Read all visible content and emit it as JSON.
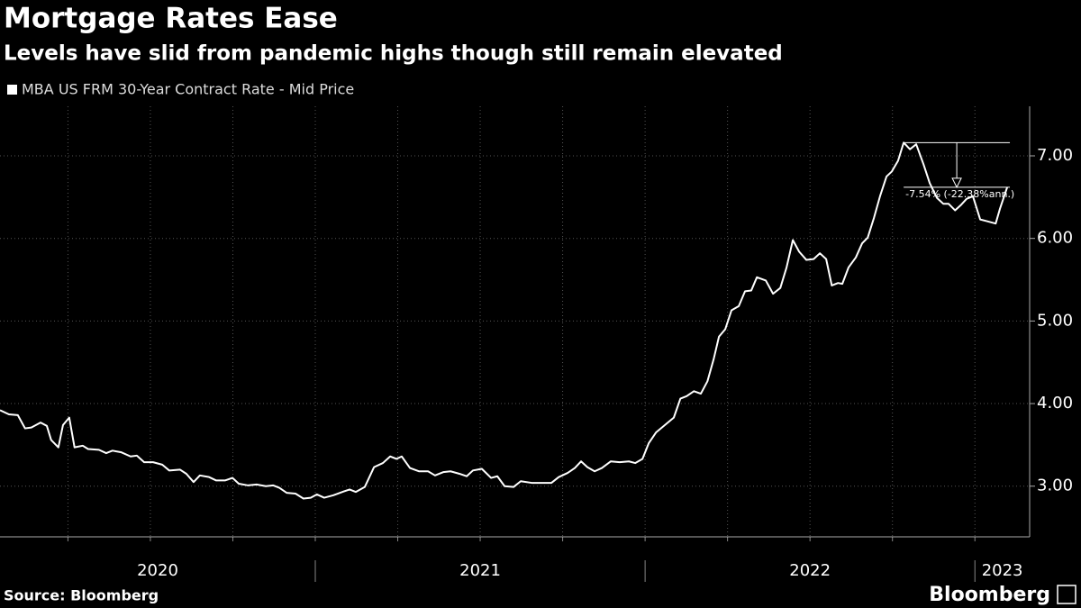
{
  "chart_data": {
    "type": "line",
    "title": "Mortgage Rates Ease",
    "subtitle": "Levels have slid from pandemic highs though still remain elevated",
    "source": "Source: Bloomberg",
    "logo": "Bloomberg",
    "xlim": [
      2020.044,
      2023.166
    ],
    "xticks": [
      {
        "value": 2020,
        "label": "2020"
      },
      {
        "value": 2021,
        "label": "2021"
      },
      {
        "value": 2022,
        "label": "2022"
      },
      {
        "value": 2023,
        "label": "2023"
      }
    ],
    "xgrid": [
      2020.25,
      2020.5,
      2020.75,
      2021,
      2021.25,
      2021.5,
      2021.75,
      2022,
      2022.25,
      2022.5,
      2022.75,
      2023
    ],
    "ylim": [
      2.43,
      7.6
    ],
    "yticks": [
      {
        "value": 3,
        "label": "3.00"
      },
      {
        "value": 4,
        "label": "4.00"
      },
      {
        "value": 5,
        "label": "5.00"
      },
      {
        "value": 6,
        "label": "6.00"
      },
      {
        "value": 7,
        "label": "7.00"
      }
    ],
    "grid": true,
    "legend": "top-left",
    "annotation": {
      "text": "-7.54% (-22.38%ann.)",
      "x": [
        2022.784,
        2023.106
      ],
      "from": 7.16,
      "to": 6.62
    },
    "series": [
      {
        "name": "MBA US FRM 30-Year Contract Rate - Mid Price",
        "color": "#ffffff",
        "x": [
          2020.044,
          2020.071,
          2020.098,
          2020.12,
          2020.139,
          2020.167,
          2020.186,
          2020.199,
          2020.221,
          2020.235,
          2020.254,
          2020.27,
          2020.295,
          2020.311,
          2020.344,
          2020.366,
          2020.385,
          2020.412,
          2020.44,
          2020.459,
          2020.481,
          2020.508,
          2020.536,
          2020.557,
          2020.59,
          2020.609,
          2020.631,
          2020.65,
          2020.678,
          2020.699,
          2020.727,
          2020.749,
          2020.768,
          2020.795,
          2020.822,
          2020.85,
          2020.872,
          2020.891,
          2020.913,
          2020.94,
          2020.964,
          2020.986,
          2021.005,
          2021.027,
          2021.055,
          2021.082,
          2021.104,
          2021.123,
          2021.15,
          2021.178,
          2021.205,
          2021.227,
          2021.246,
          2021.262,
          2021.287,
          2021.314,
          2021.342,
          2021.363,
          2021.388,
          2021.41,
          2021.437,
          2021.459,
          2021.478,
          2021.505,
          2021.533,
          2021.552,
          2021.574,
          2021.601,
          2021.623,
          2021.656,
          2021.683,
          2021.716,
          2021.738,
          2021.765,
          2021.787,
          2021.806,
          2021.825,
          2021.847,
          2021.869,
          2021.896,
          2021.923,
          2021.951,
          2021.97,
          2021.992,
          2022.011,
          2022.033,
          2022.06,
          2022.087,
          2022.107,
          2022.126,
          2022.148,
          2022.169,
          2022.189,
          2022.208,
          2022.224,
          2022.243,
          2022.262,
          2022.284,
          2022.303,
          2022.322,
          2022.339,
          2022.366,
          2022.388,
          2022.41,
          2022.429,
          2022.448,
          2022.467,
          2022.489,
          2022.511,
          2022.53,
          2022.549,
          2022.566,
          2022.585,
          2022.598,
          2022.617,
          2022.639,
          2022.658,
          2022.675,
          2022.694,
          2022.713,
          2022.732,
          2022.748,
          2022.767,
          2022.784,
          2022.803,
          2022.822,
          2022.844,
          2022.863,
          2022.885,
          2022.904,
          2022.92,
          2022.94,
          2022.959,
          2022.975,
          2022.994,
          2023.016,
          2023.035,
          2023.063,
          2023.076,
          2023.098
        ],
        "values": [
          3.92,
          3.87,
          3.86,
          3.7,
          3.71,
          3.77,
          3.73,
          3.56,
          3.47,
          3.74,
          3.83,
          3.47,
          3.49,
          3.45,
          3.44,
          3.4,
          3.43,
          3.41,
          3.36,
          3.37,
          3.29,
          3.29,
          3.26,
          3.19,
          3.2,
          3.15,
          3.05,
          3.13,
          3.11,
          3.07,
          3.07,
          3.1,
          3.03,
          3.01,
          3.02,
          3.0,
          3.01,
          2.98,
          2.92,
          2.91,
          2.85,
          2.86,
          2.9,
          2.86,
          2.89,
          2.93,
          2.96,
          2.93,
          2.99,
          3.23,
          3.28,
          3.36,
          3.33,
          3.36,
          3.22,
          3.18,
          3.18,
          3.13,
          3.17,
          3.18,
          3.15,
          3.12,
          3.19,
          3.21,
          3.1,
          3.12,
          3.0,
          2.99,
          3.06,
          3.04,
          3.04,
          3.04,
          3.11,
          3.16,
          3.22,
          3.3,
          3.23,
          3.18,
          3.22,
          3.3,
          3.29,
          3.3,
          3.28,
          3.33,
          3.52,
          3.65,
          3.74,
          3.83,
          4.06,
          4.09,
          4.15,
          4.12,
          4.27,
          4.54,
          4.81,
          4.9,
          5.13,
          5.18,
          5.36,
          5.37,
          5.53,
          5.49,
          5.33,
          5.4,
          5.65,
          5.98,
          5.84,
          5.74,
          5.75,
          5.82,
          5.75,
          5.43,
          5.46,
          5.45,
          5.65,
          5.77,
          5.94,
          6.01,
          6.25,
          6.52,
          6.75,
          6.81,
          6.94,
          7.16,
          7.08,
          7.14,
          6.9,
          6.67,
          6.49,
          6.42,
          6.42,
          6.34,
          6.41,
          6.48,
          6.51,
          6.23,
          6.21,
          6.18,
          6.36,
          6.62
        ]
      }
    ]
  }
}
